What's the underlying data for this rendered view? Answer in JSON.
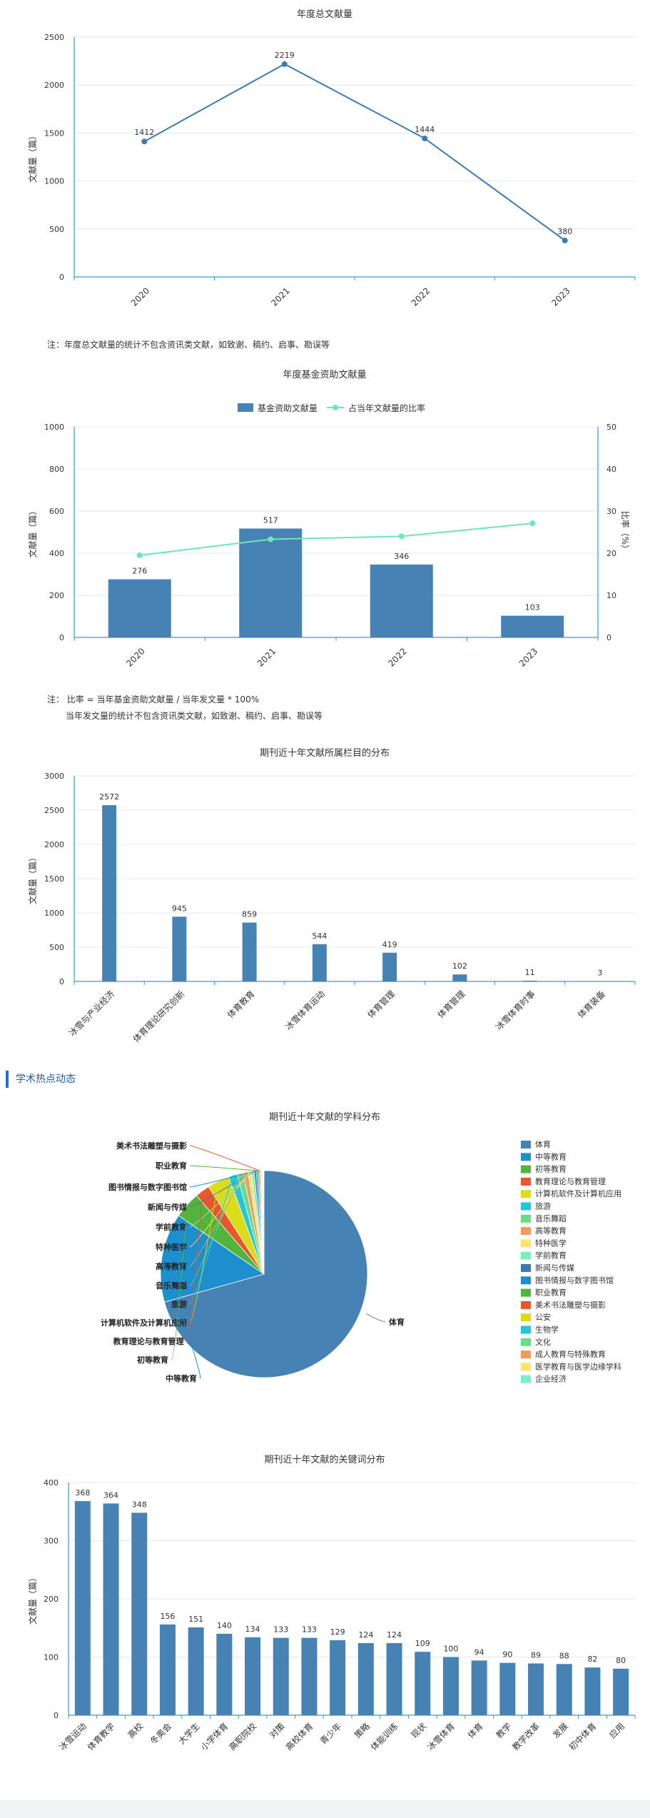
{
  "chart_data": [
    {
      "type": "line",
      "title": "年度总文献量",
      "ylabel": "文献量（篇）",
      "categories": [
        "2020",
        "2021",
        "2022",
        "2023"
      ],
      "values": [
        1412,
        2219,
        1444,
        380
      ],
      "ylim": [
        0,
        2500
      ],
      "yticks": [
        0,
        500,
        1000,
        1500,
        2000,
        2500
      ],
      "color": "#3C7AB4",
      "grid": true
    },
    {
      "type": "bar",
      "title": "年度基金资助文献量",
      "ylabel": "文献量（篇）",
      "y2label": "比率（%）",
      "categories": [
        "2020",
        "2021",
        "2022",
        "2023"
      ],
      "series": [
        {
          "name": "基金资助文献量",
          "type": "bar",
          "values": [
            276,
            517,
            346,
            103
          ],
          "color": "#4682B4"
        },
        {
          "name": "占当年文献量的比率",
          "type": "line",
          "values": [
            19.5,
            23.3,
            24.0,
            27.1
          ],
          "color": "#6EE7B7"
        }
      ],
      "ylim": [
        0,
        1000
      ],
      "yticks": [
        0,
        200,
        400,
        600,
        800,
        1000
      ],
      "y2lim": [
        0,
        50
      ],
      "y2ticks": [
        0,
        10,
        20,
        30,
        40,
        50
      ],
      "legend": "top-center",
      "grid": true
    },
    {
      "type": "bar",
      "title": "期刊近十年文献所属栏目的分布",
      "ylabel": "文献量（篇）",
      "categories": [
        "冰雪与产业经济",
        "体育理论研究创新",
        "体育教育",
        "冰雪体育运动",
        "体育管理",
        "体育管理",
        "冰雪体育时事",
        "体育装备"
      ],
      "values": [
        2572,
        945,
        859,
        544,
        419,
        102,
        11,
        3
      ],
      "ylim": [
        0,
        3000
      ],
      "yticks": [
        0,
        500,
        1000,
        1500,
        2000,
        2500,
        3000
      ],
      "color": "#4682B4",
      "grid": true
    },
    {
      "type": "pie",
      "title": "期刊近十年文献的学科分布",
      "legend": "right",
      "slices": [
        {
          "label": "体育",
          "value": 2640,
          "color": "#4682B4"
        },
        {
          "label": "中等教育",
          "value": 520,
          "color": "#1D8FCF"
        },
        {
          "label": "初等教育",
          "value": 155,
          "color": "#52B43B"
        },
        {
          "label": "教育理论与教育管理",
          "value": 85,
          "color": "#E8572A"
        },
        {
          "label": "计算机软件及计算机应用",
          "value": 130,
          "color": "#DCDC1A"
        },
        {
          "label": "旅游",
          "value": 50,
          "color": "#22C7D6"
        },
        {
          "label": "音乐舞蹈",
          "value": 36,
          "color": "#6BDB8A"
        },
        {
          "label": "高等教育",
          "value": 28,
          "color": "#F59A5A"
        },
        {
          "label": "特种医学",
          "value": 20,
          "color": "#FFE469"
        },
        {
          "label": "学前教育",
          "value": 16,
          "color": "#7BEFC3"
        },
        {
          "label": "新闻与传媒",
          "value": 12,
          "color": "#3C7AB4"
        },
        {
          "label": "图书情报与数字图书馆",
          "value": 10,
          "color": "#1D8FCF"
        },
        {
          "label": "职业教育",
          "value": 8,
          "color": "#52B43B"
        },
        {
          "label": "美术书法雕塑与摄影",
          "value": 6,
          "color": "#E8572A"
        },
        {
          "label": "公安",
          "value": 5,
          "color": "#DCDC1A"
        },
        {
          "label": "生物学",
          "value": 4,
          "color": "#22C7D6"
        },
        {
          "label": "文化",
          "value": 4,
          "color": "#6BDB8A"
        },
        {
          "label": "成人教育与特殊教育",
          "value": 3,
          "color": "#F59A5A"
        },
        {
          "label": "医学教育与医学边缘学科",
          "value": 3,
          "color": "#FFE469"
        },
        {
          "label": "企业经济",
          "value": 2,
          "color": "#7BEFC3"
        }
      ]
    },
    {
      "type": "bar",
      "title": "期刊近十年文献的关键词分布",
      "ylabel": "文献量（篇）",
      "categories": [
        "冰雪运动",
        "体育教学",
        "高校",
        "冬奥会",
        "大学生",
        "小学体育",
        "高职院校",
        "对策",
        "高校体育",
        "青少年",
        "策略",
        "体能训练",
        "现状",
        "冰雪体育",
        "体育",
        "教学",
        "教学改革",
        "发展",
        "初中体育",
        "应用"
      ],
      "values": [
        368,
        364,
        348,
        156,
        151,
        140,
        134,
        133,
        133,
        129,
        124,
        124,
        109,
        100,
        94,
        90,
        89,
        88,
        82,
        80
      ],
      "ylim": [
        0,
        400
      ],
      "yticks": [
        0,
        100,
        200,
        300,
        400
      ],
      "color": "#4682B4",
      "grid": true
    }
  ],
  "notes": {
    "note1": "注：年度总文献量的统计不包含资讯类文献，如致谢、稿约、启事、勘误等",
    "note2_line1": "注： 比率 = 当年基金资助文献量 / 当年发文量 * 100%",
    "note2_line2": "当年发文量的统计不包含资讯类文献，如致谢、稿约、启事、勘误等"
  },
  "section": {
    "title": "学术热点动态",
    "accent": "#1E6FD0"
  }
}
